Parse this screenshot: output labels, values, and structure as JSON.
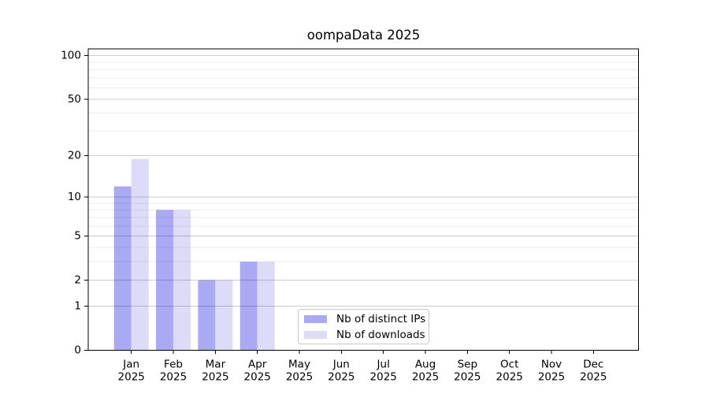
{
  "chart_data": {
    "type": "bar",
    "title": "oompaData 2025",
    "categories": [
      "Jan",
      "Feb",
      "Mar",
      "Apr",
      "May",
      "Jun",
      "Jul",
      "Aug",
      "Sep",
      "Oct",
      "Nov",
      "Dec"
    ],
    "category_year": "2025",
    "series": [
      {
        "name": "Nb of distinct IPs",
        "color": "#a9a9f4",
        "values": [
          12,
          8,
          2,
          3,
          0,
          0,
          0,
          0,
          0,
          0,
          0,
          0
        ]
      },
      {
        "name": "Nb of downloads",
        "color": "#dcdcf8",
        "values": [
          19,
          8,
          2,
          3,
          0,
          0,
          0,
          0,
          0,
          0,
          0,
          0
        ]
      }
    ],
    "xlabel": "",
    "ylabel": "",
    "yscale": "log1p",
    "ylim": [
      0,
      111
    ],
    "yticks": [
      0,
      1,
      2,
      5,
      10,
      20,
      50,
      100
    ],
    "yticks_minor": [
      3,
      4,
      6,
      7,
      8,
      9,
      30,
      40,
      60,
      70,
      80,
      90
    ],
    "grid": "horizontal",
    "legend_position": "bottom-center",
    "colors": {
      "grid_major": "rgba(0,0,0,0.20)",
      "grid_minor": "rgba(0,0,0,0.07)",
      "axis": "#000000",
      "text": "#000000",
      "background": "#ffffff"
    }
  }
}
